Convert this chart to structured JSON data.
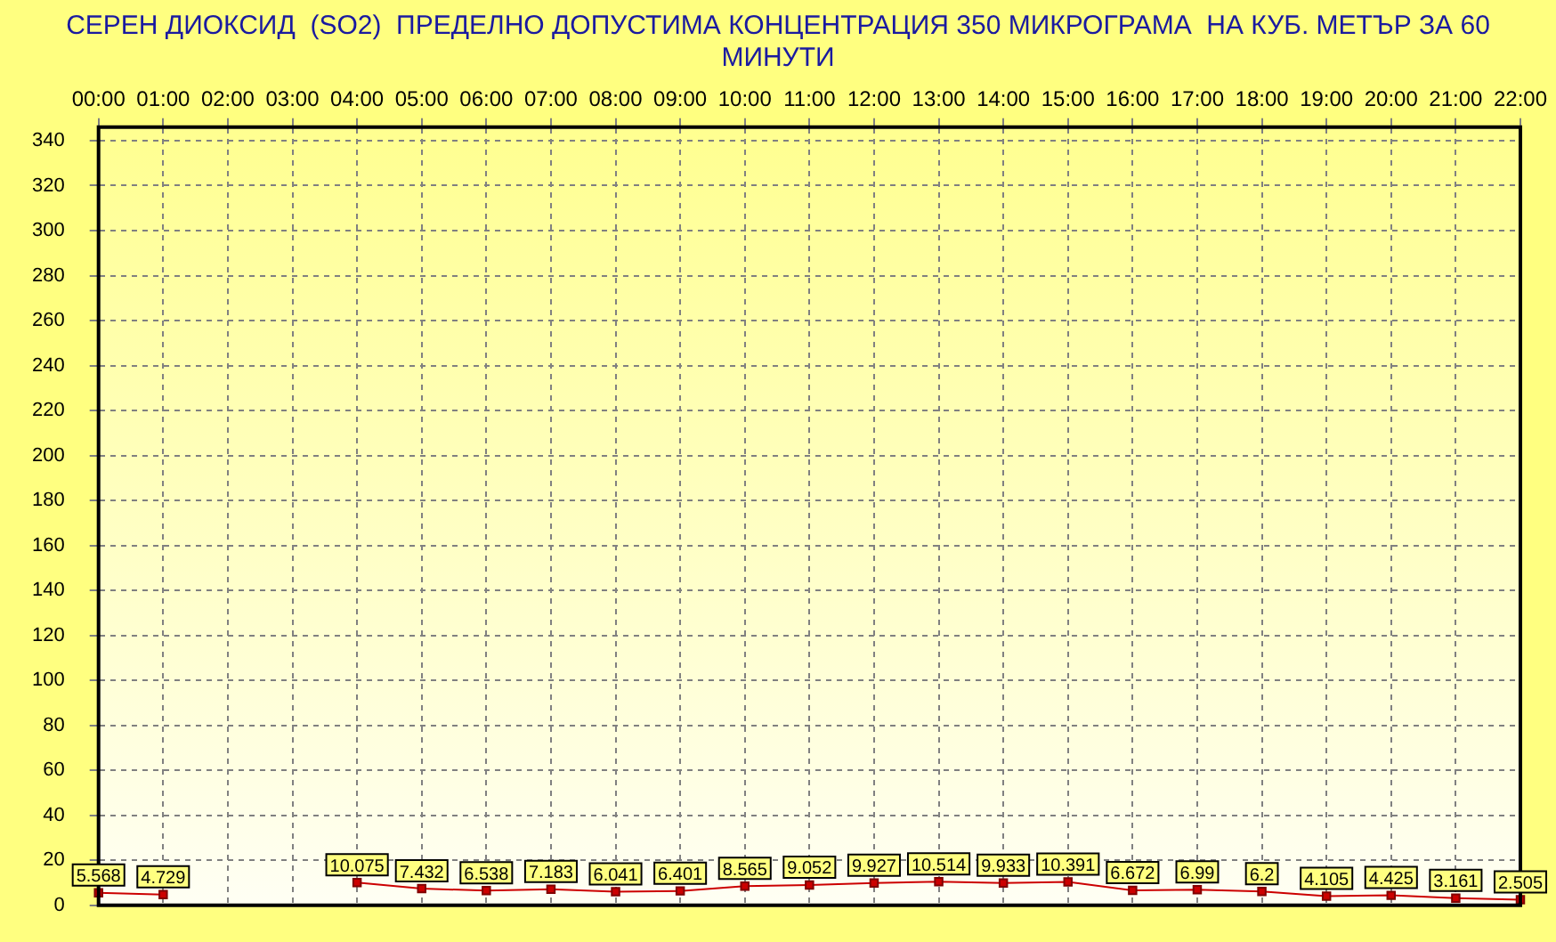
{
  "chart_data": {
    "type": "line",
    "title": "СЕРЕН ДИОКСИД  (SO2)  ПРЕДЕЛНО ДОПУСТИМА КОНЦЕНТРАЦИЯ 350 МИКРОГРАМА  НА КУБ. МЕТЪР ЗА 60 МИНУТИ",
    "categories": [
      "00:00",
      "01:00",
      "02:00",
      "03:00",
      "04:00",
      "05:00",
      "06:00",
      "07:00",
      "08:00",
      "09:00",
      "10:00",
      "11:00",
      "12:00",
      "13:00",
      "14:00",
      "15:00",
      "16:00",
      "17:00",
      "18:00",
      "19:00",
      "20:00",
      "21:00",
      "22:00"
    ],
    "series": [
      {
        "color": "#cc0000",
        "values": [
          5.568,
          4.729,
          null,
          null,
          10.075,
          7.432,
          6.538,
          7.183,
          6.041,
          6.401,
          8.565,
          9.052,
          9.927,
          10.514,
          9.933,
          10.391,
          6.672,
          6.99,
          6.2,
          4.105,
          4.425,
          3.161,
          2.505
        ]
      }
    ],
    "ylim": [
      0,
      346
    ],
    "yticks": [
      0,
      20,
      40,
      60,
      80,
      100,
      120,
      140,
      160,
      180,
      200,
      220,
      240,
      260,
      280,
      300,
      320,
      340
    ],
    "grid": true,
    "legend": false,
    "marker": "square",
    "line_style": "solid",
    "data_labels": true
  }
}
